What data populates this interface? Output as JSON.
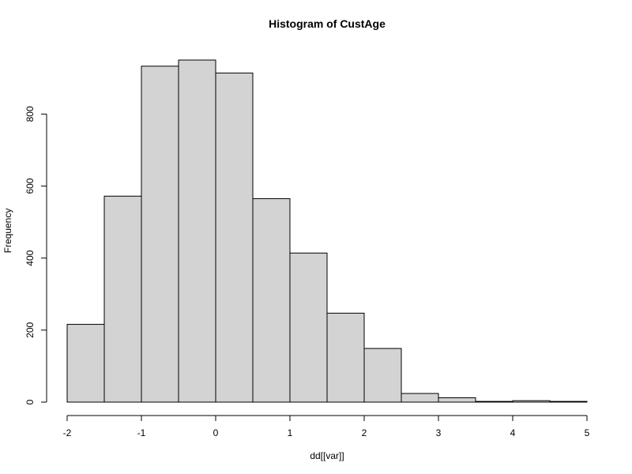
{
  "chart_data": {
    "type": "bar",
    "title": "Histogram of CustAge",
    "xlabel": "dd[[var]]",
    "ylabel": "Frequency",
    "bin_edges": [
      -2,
      -1.5,
      -1,
      -0.5,
      0,
      0.5,
      1,
      1.5,
      2,
      2.5,
      3,
      3.5,
      4,
      4.5,
      5
    ],
    "values": [
      216,
      572,
      933,
      950,
      914,
      565,
      414,
      247,
      149,
      24,
      12,
      2,
      4,
      2
    ],
    "xlim": [
      -2,
      5
    ],
    "ylim": [
      0,
      950
    ],
    "x_ticks": [
      "-2",
      "-1",
      "0",
      "1",
      "2",
      "3",
      "4",
      "5"
    ],
    "y_ticks": [
      "0",
      "200",
      "400",
      "600",
      "800"
    ],
    "colors": {
      "bar_fill": "#d3d3d3",
      "bar_stroke": "#000000"
    }
  }
}
